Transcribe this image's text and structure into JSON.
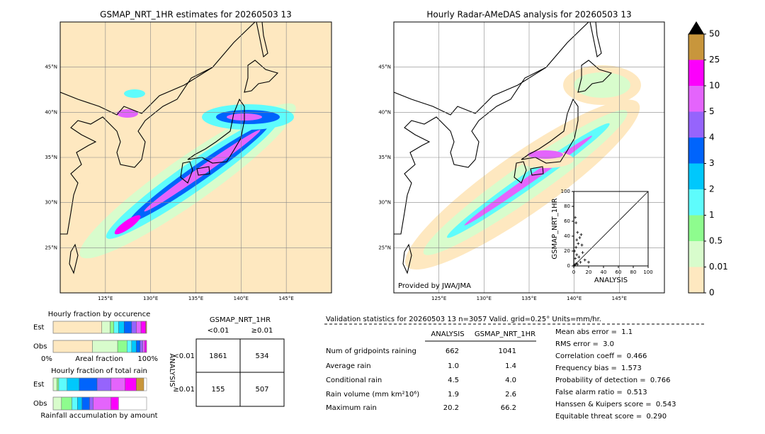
{
  "maps": [
    {
      "title": "GSMAP_NRT_1HR estimates for 20260503 13",
      "xlim": [
        120,
        150
      ],
      "ylim": [
        20,
        50
      ],
      "xticks": [
        {
          "value": 125,
          "label": "125°E"
        },
        {
          "value": 130,
          "label": "130°E"
        },
        {
          "value": 135,
          "label": "135°E"
        },
        {
          "value": 140,
          "label": "140°E"
        },
        {
          "value": 145,
          "label": "145°E"
        }
      ],
      "yticks": [
        {
          "value": 25,
          "label": "25°N"
        },
        {
          "value": 30,
          "label": "30°N"
        },
        {
          "value": 35,
          "label": "35°N"
        },
        {
          "value": 40,
          "label": "40°N"
        },
        {
          "value": 45,
          "label": "45°N"
        }
      ]
    },
    {
      "title": "Hourly Radar-AMeDAS analysis for 20260503 13",
      "credit": "Provided by JWA/JMA",
      "xlim": [
        120,
        150
      ],
      "ylim": [
        20,
        50
      ],
      "xticks": [
        {
          "value": 125,
          "label": "125°E"
        },
        {
          "value": 130,
          "label": "130°E"
        },
        {
          "value": 135,
          "label": "135°E"
        },
        {
          "value": 140,
          "label": "140°E"
        },
        {
          "value": 145,
          "label": "145°E"
        }
      ],
      "yticks": [
        {
          "value": 25,
          "label": "25°N"
        },
        {
          "value": 30,
          "label": "30°N"
        },
        {
          "value": 35,
          "label": "35°N"
        },
        {
          "value": 40,
          "label": "40°N"
        },
        {
          "value": 45,
          "label": "45°N"
        }
      ]
    }
  ],
  "colorbar": {
    "levels": [
      0,
      0.01,
      0.5,
      1,
      2,
      3,
      4,
      5,
      10,
      25,
      50
    ],
    "colors": [
      "#fee8c0",
      "#d8fccc",
      "#8efc8e",
      "#5efcfc",
      "#00c8fc",
      "#0064fc",
      "#9664fc",
      "#e464fc",
      "#fc00fc",
      "#c8963c"
    ],
    "extend_color": "#000000"
  },
  "scatter": {
    "xlim": [
      0,
      100
    ],
    "ylim": [
      0,
      100
    ],
    "xticks": [
      0,
      20,
      40,
      60,
      80,
      100
    ],
    "yticks": [
      0,
      20,
      40,
      60,
      80,
      100
    ],
    "xlabel": "ANALYSIS",
    "ylabel": "GSMAP_NRT_1HR",
    "x": [
      2,
      3,
      5,
      8,
      10,
      6,
      3,
      1,
      4,
      2,
      7,
      12,
      15,
      9,
      3,
      1,
      5,
      20,
      11,
      4
    ],
    "y": [
      65,
      58,
      45,
      38,
      42,
      30,
      25,
      20,
      15,
      10,
      12,
      18,
      8,
      5,
      3,
      1,
      2,
      5,
      28,
      35
    ]
  },
  "fraction_occurrence": {
    "title": "Hourly fraction by occurence",
    "rows": [
      "Est",
      "Obs"
    ],
    "xlabel": "Areal fraction",
    "left": "0%",
    "right": "100%",
    "est": [
      52,
      9,
      4,
      5,
      6,
      8,
      5,
      5,
      5,
      1
    ],
    "obs": [
      42,
      27,
      10,
      5,
      5,
      4,
      3,
      2,
      2,
      0
    ]
  },
  "fraction_rain": {
    "title": "Hourly fraction of total rain",
    "rows": [
      "Est",
      "Obs"
    ],
    "xlabel": "Rainfall accumulation by amount",
    "est": [
      0,
      4,
      2,
      9,
      13,
      19,
      15,
      15,
      12,
      8
    ],
    "obs": [
      0,
      9,
      11,
      6,
      5,
      8,
      4,
      19,
      8,
      0
    ]
  },
  "contingency": {
    "title": "GSMAP_NRT_1HR",
    "cols": [
      "<0.01",
      "≥0.01"
    ],
    "side": "ANALYSIS",
    "rows": [
      "<0.01",
      "≥0.01"
    ],
    "cells": [
      [
        "1861",
        "534"
      ],
      [
        "155",
        "507"
      ]
    ]
  },
  "validation": {
    "header": "Validation statistics for 20260503 13  n=3057 Valid. grid=0.25° Units=mm/hr.",
    "cols": [
      "ANALYSIS",
      "GSMAP_NRT_1HR"
    ],
    "rows": [
      [
        "Num of gridpoints raining",
        "662",
        "1041"
      ],
      [
        "Average rain",
        "1.0",
        "1.4"
      ],
      [
        "Conditional rain",
        "4.5",
        "4.0"
      ],
      [
        "Rain volume (mm km²10⁶)",
        "1.9",
        "2.6"
      ],
      [
        "Maximum rain",
        "20.2",
        "66.2"
      ]
    ],
    "scores": [
      [
        "Mean abs error = ",
        "1.1"
      ],
      [
        "RMS error = ",
        "3.0"
      ],
      [
        "Correlation coeff = ",
        "0.466"
      ],
      [
        "Frequency bias = ",
        "1.573"
      ],
      [
        "Probability of detection = ",
        "0.766"
      ],
      [
        "False alarm ratio = ",
        "0.513"
      ],
      [
        "Hanssen & Kuipers score = ",
        "0.543"
      ],
      [
        "Equitable threat score = ",
        "0.290"
      ]
    ]
  }
}
